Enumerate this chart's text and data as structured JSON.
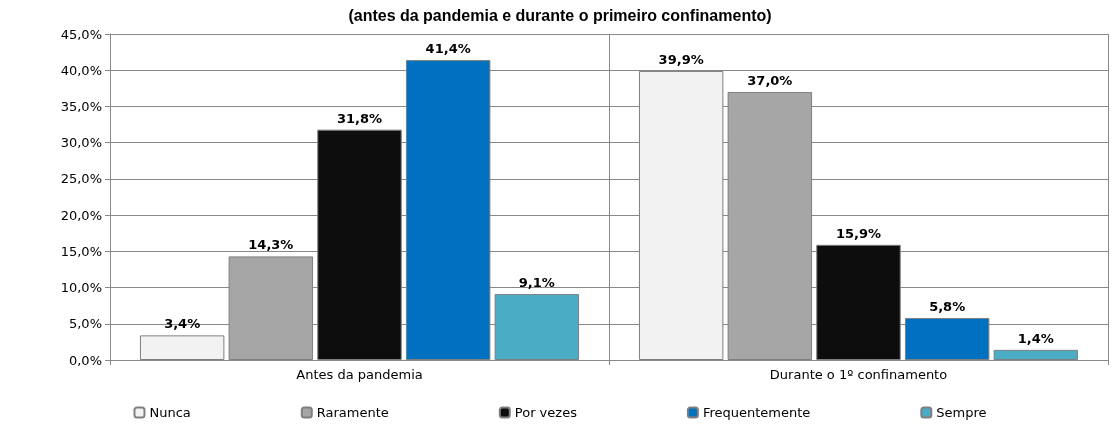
{
  "chart_data": {
    "type": "bar",
    "title": "(antes da pandemia e durante o primeiro confinamento)",
    "categories": [
      "Antes da pandemia",
      "Durante o 1º confinamento"
    ],
    "series": [
      {
        "name": "Nunca",
        "color": "#f2f2f2",
        "values": [
          3.4,
          39.9
        ],
        "value_labels": [
          "3,4%",
          "39,9%"
        ]
      },
      {
        "name": "Raramente",
        "color": "#a6a6a6",
        "values": [
          14.3,
          37.0
        ],
        "value_labels": [
          "14,3%",
          "37,0%"
        ]
      },
      {
        "name": "Por vezes",
        "color": "#0d0d0d",
        "values": [
          31.8,
          15.9
        ],
        "value_labels": [
          "31,8%",
          "15,9%"
        ]
      },
      {
        "name": "Frequentemente",
        "color": "#0070c0",
        "values": [
          41.4,
          5.8
        ],
        "value_labels": [
          "41,4%",
          "5,8%"
        ]
      },
      {
        "name": "Sempre",
        "color": "#4bacc6",
        "values": [
          9.1,
          1.4
        ],
        "value_labels": [
          "9,1%",
          "1,4%"
        ]
      }
    ],
    "ylim": [
      0,
      45
    ],
    "yticks": [
      {
        "value": 0,
        "label": "0,0%"
      },
      {
        "value": 5,
        "label": "5,0%"
      },
      {
        "value": 10,
        "label": "10,0%"
      },
      {
        "value": 15,
        "label": "15,0%"
      },
      {
        "value": 20,
        "label": "20,0%"
      },
      {
        "value": 25,
        "label": "25,0%"
      },
      {
        "value": 30,
        "label": "30,0%"
      },
      {
        "value": 35,
        "label": "35,0%"
      },
      {
        "value": 40,
        "label": "40,0%"
      },
      {
        "value": 45,
        "label": "45,0%"
      }
    ],
    "grid": "y",
    "legend": "bottom"
  }
}
